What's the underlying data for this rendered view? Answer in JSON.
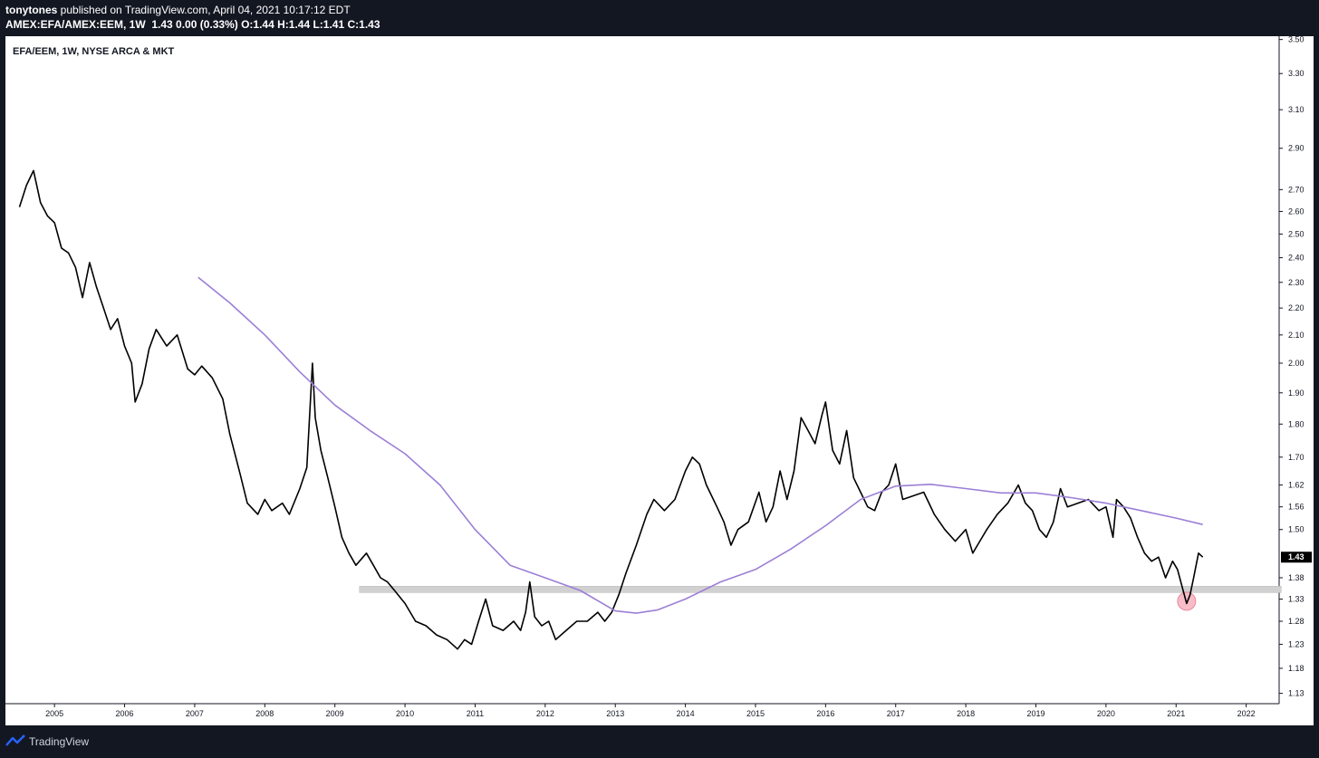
{
  "header": {
    "publisher": "tonytones",
    "published_text": " published on TradingView.com, April 04, 2021 10:17:12 EDT",
    "symbol": "AMEX:EFA/AMEX:EEM, 1W",
    "quote": "1.43 0.00 (0.33%) O:1.44 H:1.44 L:1.41 C:1.43"
  },
  "chart_title": "EFA/EEM, 1W, NYSE ARCA & MKT",
  "footer": {
    "brand": "TradingView"
  },
  "colors": {
    "price_line": "#000000",
    "moving_average": "#9b7fd6",
    "support_band": "#d1d1d1",
    "highlight_circle": "#f4a6b4",
    "price_tag_bg": "#000000"
  },
  "chart_data": {
    "type": "line",
    "x_ticks": [
      "2005",
      "2006",
      "2007",
      "2008",
      "2009",
      "2010",
      "2011",
      "2012",
      "2013",
      "2014",
      "2015",
      "2016",
      "2017",
      "2018",
      "2019",
      "2020",
      "2021",
      "2022"
    ],
    "y_scale": "log",
    "y_ticks": [
      "3.50",
      "3.30",
      "3.10",
      "2.90",
      "2.70",
      "2.60",
      "2.50",
      "2.40",
      "2.30",
      "2.20",
      "2.10",
      "2.00",
      "1.90",
      "1.80",
      "1.70",
      "1.62",
      "1.56",
      "1.50",
      "1.43",
      "1.38",
      "1.33",
      "1.28",
      "1.23",
      "1.18",
      "1.13"
    ],
    "ylim": [
      1.11,
      3.52
    ],
    "current_price_label": "1.43",
    "series": [
      {
        "name": "EFA/EEM",
        "points": [
          [
            2004.5,
            2.62
          ],
          [
            2004.6,
            2.72
          ],
          [
            2004.7,
            2.79
          ],
          [
            2004.8,
            2.64
          ],
          [
            2004.9,
            2.58
          ],
          [
            2005.0,
            2.55
          ],
          [
            2005.1,
            2.44
          ],
          [
            2005.2,
            2.42
          ],
          [
            2005.3,
            2.36
          ],
          [
            2005.4,
            2.24
          ],
          [
            2005.5,
            2.38
          ],
          [
            2005.6,
            2.28
          ],
          [
            2005.7,
            2.2
          ],
          [
            2005.8,
            2.12
          ],
          [
            2005.9,
            2.16
          ],
          [
            2006.0,
            2.06
          ],
          [
            2006.1,
            2.0
          ],
          [
            2006.15,
            1.87
          ],
          [
            2006.25,
            1.93
          ],
          [
            2006.35,
            2.05
          ],
          [
            2006.45,
            2.12
          ],
          [
            2006.6,
            2.06
          ],
          [
            2006.75,
            2.1
          ],
          [
            2006.9,
            1.98
          ],
          [
            2007.0,
            1.96
          ],
          [
            2007.1,
            1.99
          ],
          [
            2007.25,
            1.95
          ],
          [
            2007.4,
            1.88
          ],
          [
            2007.5,
            1.77
          ],
          [
            2007.65,
            1.65
          ],
          [
            2007.75,
            1.57
          ],
          [
            2007.9,
            1.54
          ],
          [
            2008.0,
            1.58
          ],
          [
            2008.1,
            1.55
          ],
          [
            2008.25,
            1.57
          ],
          [
            2008.35,
            1.54
          ],
          [
            2008.5,
            1.61
          ],
          [
            2008.6,
            1.67
          ],
          [
            2008.68,
            2.0
          ],
          [
            2008.72,
            1.82
          ],
          [
            2008.8,
            1.72
          ],
          [
            2008.9,
            1.64
          ],
          [
            2009.0,
            1.56
          ],
          [
            2009.1,
            1.48
          ],
          [
            2009.2,
            1.44
          ],
          [
            2009.3,
            1.41
          ],
          [
            2009.45,
            1.44
          ],
          [
            2009.55,
            1.41
          ],
          [
            2009.65,
            1.38
          ],
          [
            2009.75,
            1.37
          ],
          [
            2009.85,
            1.35
          ],
          [
            2010.0,
            1.32
          ],
          [
            2010.15,
            1.28
          ],
          [
            2010.3,
            1.27
          ],
          [
            2010.45,
            1.25
          ],
          [
            2010.6,
            1.24
          ],
          [
            2010.75,
            1.22
          ],
          [
            2010.85,
            1.24
          ],
          [
            2010.95,
            1.23
          ],
          [
            2011.05,
            1.28
          ],
          [
            2011.15,
            1.33
          ],
          [
            2011.25,
            1.27
          ],
          [
            2011.4,
            1.26
          ],
          [
            2011.55,
            1.28
          ],
          [
            2011.65,
            1.26
          ],
          [
            2011.72,
            1.3
          ],
          [
            2011.78,
            1.37
          ],
          [
            2011.85,
            1.29
          ],
          [
            2011.95,
            1.27
          ],
          [
            2012.05,
            1.28
          ],
          [
            2012.15,
            1.24
          ],
          [
            2012.3,
            1.26
          ],
          [
            2012.45,
            1.28
          ],
          [
            2012.6,
            1.28
          ],
          [
            2012.75,
            1.3
          ],
          [
            2012.85,
            1.28
          ],
          [
            2012.95,
            1.3
          ],
          [
            2013.05,
            1.34
          ],
          [
            2013.15,
            1.39
          ],
          [
            2013.3,
            1.46
          ],
          [
            2013.45,
            1.54
          ],
          [
            2013.55,
            1.58
          ],
          [
            2013.7,
            1.55
          ],
          [
            2013.85,
            1.58
          ],
          [
            2014.0,
            1.66
          ],
          [
            2014.1,
            1.7
          ],
          [
            2014.2,
            1.68
          ],
          [
            2014.3,
            1.62
          ],
          [
            2014.45,
            1.56
          ],
          [
            2014.55,
            1.52
          ],
          [
            2014.65,
            1.46
          ],
          [
            2014.75,
            1.5
          ],
          [
            2014.9,
            1.52
          ],
          [
            2015.05,
            1.6
          ],
          [
            2015.15,
            1.52
          ],
          [
            2015.25,
            1.56
          ],
          [
            2015.35,
            1.66
          ],
          [
            2015.45,
            1.58
          ],
          [
            2015.55,
            1.66
          ],
          [
            2015.65,
            1.82
          ],
          [
            2015.75,
            1.78
          ],
          [
            2015.85,
            1.74
          ],
          [
            2015.95,
            1.83
          ],
          [
            2016.0,
            1.87
          ],
          [
            2016.1,
            1.72
          ],
          [
            2016.2,
            1.68
          ],
          [
            2016.3,
            1.78
          ],
          [
            2016.4,
            1.64
          ],
          [
            2016.5,
            1.6
          ],
          [
            2016.6,
            1.56
          ],
          [
            2016.7,
            1.55
          ],
          [
            2016.8,
            1.6
          ],
          [
            2016.9,
            1.62
          ],
          [
            2017.0,
            1.68
          ],
          [
            2017.1,
            1.58
          ],
          [
            2017.25,
            1.59
          ],
          [
            2017.4,
            1.6
          ],
          [
            2017.55,
            1.54
          ],
          [
            2017.7,
            1.5
          ],
          [
            2017.85,
            1.47
          ],
          [
            2018.0,
            1.5
          ],
          [
            2018.1,
            1.44
          ],
          [
            2018.2,
            1.47
          ],
          [
            2018.3,
            1.5
          ],
          [
            2018.45,
            1.54
          ],
          [
            2018.6,
            1.57
          ],
          [
            2018.75,
            1.62
          ],
          [
            2018.85,
            1.57
          ],
          [
            2018.95,
            1.55
          ],
          [
            2019.05,
            1.5
          ],
          [
            2019.15,
            1.48
          ],
          [
            2019.25,
            1.52
          ],
          [
            2019.35,
            1.61
          ],
          [
            2019.45,
            1.56
          ],
          [
            2019.6,
            1.57
          ],
          [
            2019.75,
            1.58
          ],
          [
            2019.9,
            1.55
          ],
          [
            2020.0,
            1.56
          ],
          [
            2020.1,
            1.48
          ],
          [
            2020.15,
            1.58
          ],
          [
            2020.25,
            1.56
          ],
          [
            2020.35,
            1.53
          ],
          [
            2020.45,
            1.48
          ],
          [
            2020.55,
            1.44
          ],
          [
            2020.65,
            1.42
          ],
          [
            2020.75,
            1.43
          ],
          [
            2020.85,
            1.38
          ],
          [
            2020.95,
            1.42
          ],
          [
            2021.02,
            1.4
          ],
          [
            2021.1,
            1.35
          ],
          [
            2021.15,
            1.32
          ],
          [
            2021.2,
            1.34
          ],
          [
            2021.25,
            1.38
          ],
          [
            2021.32,
            1.44
          ],
          [
            2021.38,
            1.43
          ]
        ]
      },
      {
        "name": "moving average",
        "points": [
          [
            2007.05,
            2.32
          ],
          [
            2007.5,
            2.22
          ],
          [
            2008.0,
            2.1
          ],
          [
            2008.5,
            1.97
          ],
          [
            2009.0,
            1.86
          ],
          [
            2009.5,
            1.78
          ],
          [
            2010.0,
            1.71
          ],
          [
            2010.5,
            1.62
          ],
          [
            2011.0,
            1.5
          ],
          [
            2011.5,
            1.41
          ],
          [
            2012.0,
            1.38
          ],
          [
            2012.5,
            1.35
          ],
          [
            2013.0,
            1.303
          ],
          [
            2013.3,
            1.298
          ],
          [
            2013.6,
            1.305
          ],
          [
            2014.0,
            1.33
          ],
          [
            2014.5,
            1.37
          ],
          [
            2015.0,
            1.4
          ],
          [
            2015.5,
            1.45
          ],
          [
            2016.0,
            1.51
          ],
          [
            2016.5,
            1.58
          ],
          [
            2017.0,
            1.617
          ],
          [
            2017.5,
            1.622
          ],
          [
            2018.0,
            1.61
          ],
          [
            2018.5,
            1.598
          ],
          [
            2019.0,
            1.598
          ],
          [
            2019.5,
            1.585
          ],
          [
            2020.0,
            1.57
          ],
          [
            2020.5,
            1.55
          ],
          [
            2021.0,
            1.53
          ],
          [
            2021.38,
            1.513
          ]
        ]
      }
    ],
    "annotations": [
      {
        "type": "band",
        "y": [
          1.345,
          1.36
        ],
        "x_start": 2009.35,
        "x_end": 2022.5
      },
      {
        "type": "circle",
        "x": 2021.15,
        "y": 1.325
      }
    ]
  }
}
